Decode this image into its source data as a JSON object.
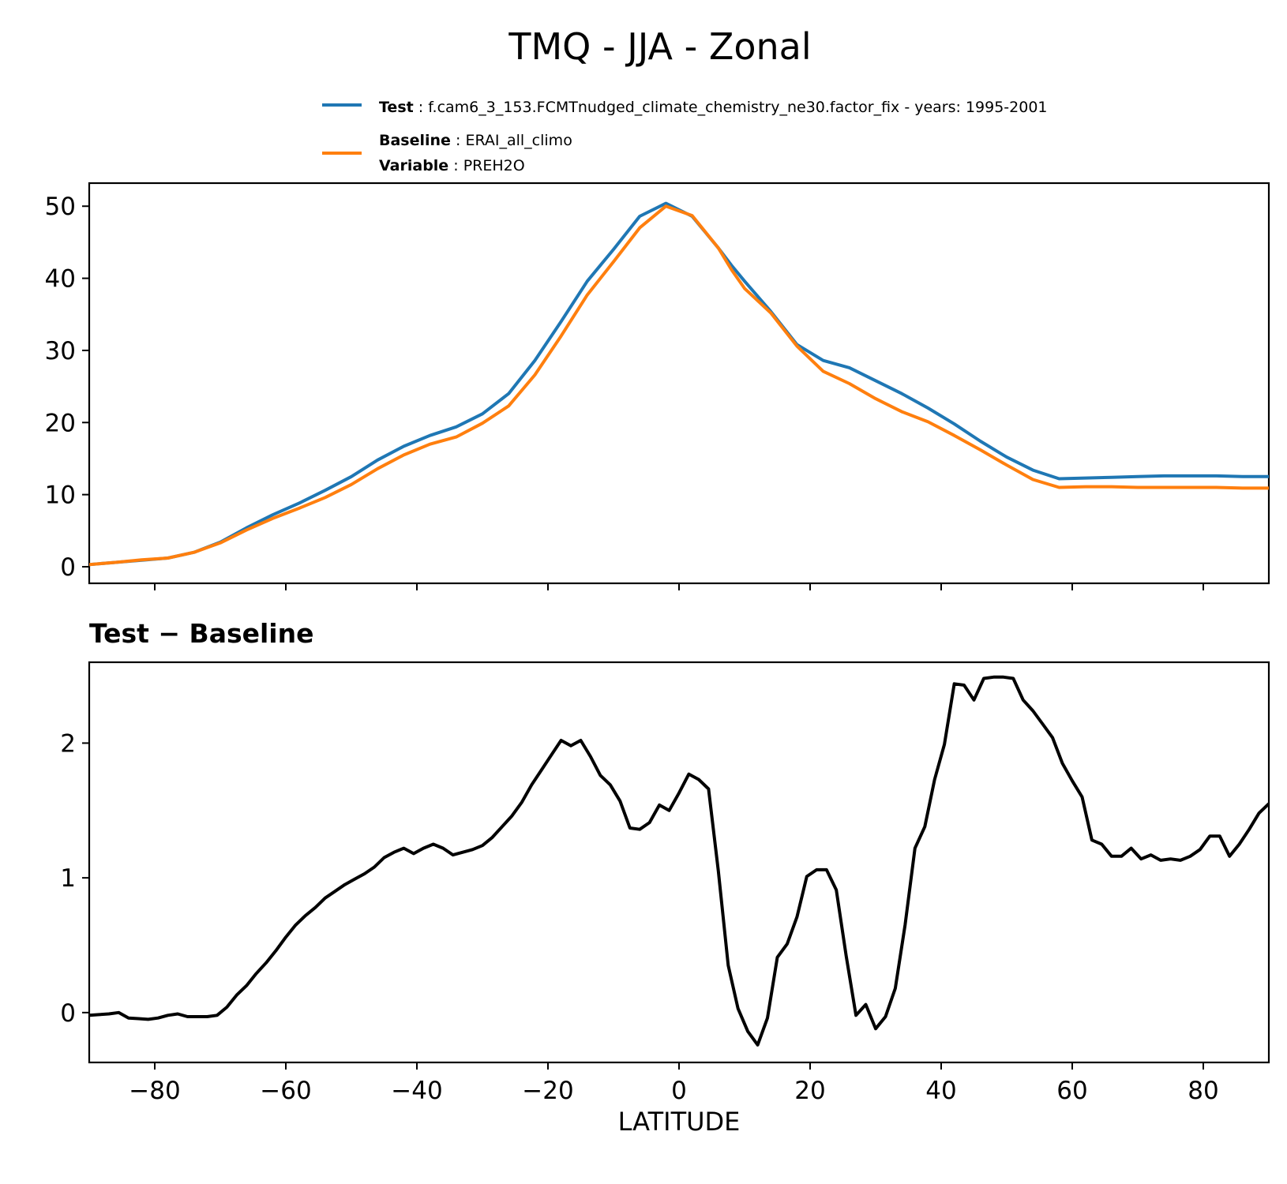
{
  "chart_data": {
    "title": "TMQ - JJA - Zonal",
    "legend": {
      "placement": "top",
      "entries": [
        {
          "name": "Test",
          "sep": ":",
          "text": "f.cam6_3_153.FCMTnudged_climate_chemistry_ne30.factor_fix - years: 1995-2001",
          "color": "#1f77b4"
        },
        {
          "name": "Baseline",
          "sep": ":",
          "text": "ERAI_all_climo",
          "color": "#ff7f0e"
        },
        {
          "name": "Variable",
          "sep": ":",
          "text": "PREH2O"
        }
      ]
    },
    "xlabel": "LATITUDE",
    "xlim": [
      -90,
      90
    ],
    "xticks": [
      -80,
      -60,
      -40,
      -20,
      0,
      20,
      40,
      60,
      80
    ],
    "xtick_labels": [
      "−80",
      "−60",
      "−40",
      "−20",
      "0",
      "20",
      "40",
      "60",
      "80"
    ],
    "panels": [
      {
        "type": "line",
        "title": "",
        "ylim": [
          -2.3,
          53.2
        ],
        "yticks": [
          0,
          10,
          20,
          30,
          40,
          50
        ],
        "ytick_labels": [
          "0",
          "10",
          "20",
          "30",
          "40",
          "50"
        ],
        "x": [
          -90,
          -86,
          -82,
          -78,
          -74,
          -70,
          -66,
          -62,
          -58,
          -54,
          -50,
          -46,
          -42,
          -38,
          -34,
          -30,
          -26,
          -22,
          -18,
          -14,
          -10,
          -6,
          -2,
          2,
          6,
          8,
          10,
          14,
          18,
          22,
          26,
          30,
          34,
          38,
          42,
          46,
          50,
          54,
          58,
          62,
          66,
          70,
          74,
          78,
          82,
          86,
          90
        ],
        "series": [
          {
            "name": "Test",
            "color": "#1f77b4",
            "values": [
              0.3,
              0.6,
              0.9,
              1.2,
              2.0,
              3.4,
              5.4,
              7.2,
              8.8,
              10.6,
              12.5,
              14.8,
              16.7,
              18.2,
              19.4,
              21.2,
              24.0,
              28.6,
              34.0,
              39.6,
              44.0,
              48.6,
              50.4,
              48.6,
              44.2,
              41.8,
              39.6,
              35.4,
              30.8,
              28.6,
              27.6,
              25.8,
              24.0,
              22.0,
              19.8,
              17.4,
              15.2,
              13.4,
              12.2,
              12.3,
              12.4,
              12.5,
              12.6,
              12.6,
              12.6,
              12.5,
              12.5
            ]
          },
          {
            "name": "Baseline",
            "color": "#ff7f0e",
            "values": [
              0.3,
              0.6,
              0.95,
              1.2,
              2.0,
              3.3,
              5.1,
              6.7,
              8.1,
              9.6,
              11.4,
              13.6,
              15.5,
              17.0,
              18.0,
              19.9,
              22.3,
              26.6,
              32.0,
              37.7,
              42.3,
              47.0,
              50.0,
              48.7,
              44.2,
              41.2,
              38.6,
              35.2,
              30.6,
              27.1,
              25.4,
              23.3,
              21.5,
              20.1,
              18.2,
              16.2,
              14.1,
              12.1,
              11.0,
              11.1,
              11.1,
              11.0,
              11.0,
              11.0,
              11.0,
              10.9,
              10.9
            ]
          }
        ]
      },
      {
        "type": "line",
        "title": "Test − Baseline",
        "ylim": [
          -0.37,
          2.6
        ],
        "yticks": [
          0,
          1,
          2
        ],
        "ytick_labels": [
          "0",
          "1",
          "2"
        ],
        "x": [
          -90,
          -88.5,
          -87,
          -85.5,
          -84,
          -82.5,
          -81,
          -79.5,
          -78,
          -76.5,
          -75,
          -73.5,
          -72,
          -70.5,
          -69,
          -67.5,
          -66,
          -64.5,
          -63,
          -61.5,
          -60,
          -58.5,
          -57,
          -55.5,
          -54,
          -52.5,
          -51,
          -49.5,
          -48,
          -46.5,
          -45,
          -43.5,
          -42,
          -40.5,
          -39,
          -37.5,
          -36,
          -34.5,
          -33,
          -31.5,
          -30,
          -28.5,
          -27,
          -25.5,
          -24,
          -22.5,
          -21,
          -19.5,
          -18,
          -16.5,
          -15,
          -13.5,
          -12,
          -10.5,
          -9,
          -7.5,
          -6,
          -4.5,
          -3,
          -1.5,
          0,
          1.5,
          3,
          4.5,
          6,
          7.5,
          9,
          10.5,
          12,
          13.5,
          15,
          16.5,
          18,
          19.5,
          21,
          22.5,
          24,
          25.5,
          27,
          28.5,
          30,
          31.5,
          33,
          34.5,
          36,
          37.5,
          39,
          40.5,
          42,
          43.5,
          45,
          46.5,
          48,
          49.5,
          51,
          52.5,
          54,
          55.5,
          57,
          58.5,
          60,
          61.5,
          63,
          64.5,
          66,
          67.5,
          69,
          70.5,
          72,
          73.5,
          75,
          76.5,
          78,
          79.5,
          81,
          82.5,
          84,
          85.5,
          87,
          88.5,
          90
        ],
        "series": [
          {
            "name": "Test − Baseline",
            "color": "#000000",
            "values": [
              -0.02,
              -0.015,
              -0.01,
              0.0,
              -0.04,
              -0.045,
              -0.05,
              -0.04,
              -0.02,
              -0.01,
              -0.03,
              -0.03,
              -0.03,
              -0.02,
              0.04,
              0.13,
              0.2,
              0.29,
              0.37,
              0.46,
              0.56,
              0.65,
              0.72,
              0.78,
              0.85,
              0.9,
              0.95,
              0.99,
              1.03,
              1.08,
              1.15,
              1.19,
              1.22,
              1.18,
              1.22,
              1.25,
              1.22,
              1.17,
              1.19,
              1.21,
              1.24,
              1.3,
              1.38,
              1.46,
              1.56,
              1.69,
              1.8,
              1.91,
              2.02,
              1.98,
              2.02,
              1.9,
              1.76,
              1.69,
              1.57,
              1.37,
              1.36,
              1.41,
              1.54,
              1.5,
              1.63,
              1.77,
              1.73,
              1.66,
              1.05,
              0.35,
              0.03,
              -0.14,
              -0.24,
              -0.04,
              0.41,
              0.51,
              0.71,
              1.01,
              1.06,
              1.06,
              0.91,
              0.42,
              -0.02,
              0.06,
              -0.12,
              -0.03,
              0.18,
              0.65,
              1.22,
              1.38,
              1.73,
              1.99,
              2.44,
              2.43,
              2.32,
              2.48,
              2.49,
              2.49,
              2.48,
              2.32,
              2.24,
              2.14,
              2.04,
              1.85,
              1.72,
              1.6,
              1.28,
              1.25,
              1.16,
              1.16,
              1.22,
              1.14,
              1.17,
              1.13,
              1.14,
              1.13,
              1.16,
              1.21,
              1.31,
              1.31,
              1.16,
              1.25,
              1.36,
              1.48,
              1.55
            ]
          }
        ]
      }
    ]
  }
}
